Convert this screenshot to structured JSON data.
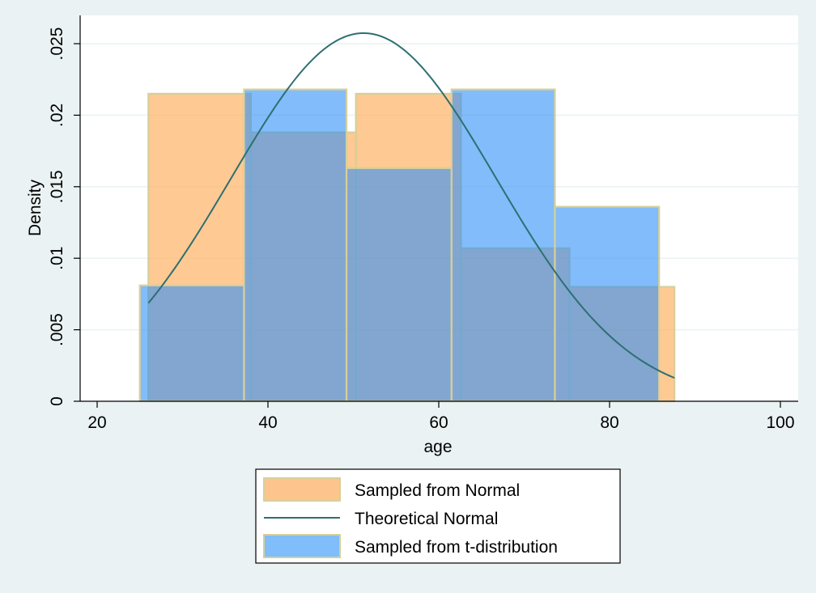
{
  "chart_data": {
    "type": "bar",
    "xlabel": "age",
    "ylabel": "Density",
    "xlim": [
      20,
      100
    ],
    "ylim": [
      0,
      0.026
    ],
    "x_ticks": [
      "20",
      "40",
      "60",
      "80",
      "100"
    ],
    "x_tick_values": [
      20,
      40,
      60,
      80,
      100
    ],
    "y_ticks": [
      "0",
      ".005",
      ".01",
      ".015",
      ".02",
      ".025"
    ],
    "y_tick_values": [
      0,
      0.005,
      0.01,
      0.015,
      0.02,
      0.025
    ],
    "grid": true,
    "legend_position": "bottom",
    "series": [
      {
        "name": "Sampled from Normal",
        "kind": "histogram",
        "color": "#fdb46a",
        "bins": [
          {
            "from": 26.0,
            "to": 38.0,
            "density": 0.0215
          },
          {
            "from": 38.0,
            "to": 50.3,
            "density": 0.0188
          },
          {
            "from": 50.3,
            "to": 62.6,
            "density": 0.0215
          },
          {
            "from": 62.6,
            "to": 75.3,
            "density": 0.0107
          },
          {
            "from": 75.3,
            "to": 87.6,
            "density": 0.008
          }
        ]
      },
      {
        "name": "Theoretical Normal",
        "kind": "line",
        "color": "#2e6f72",
        "mean": 51.2,
        "sd": 15.5,
        "x_range": [
          26.0,
          87.6
        ]
      },
      {
        "name": "Sampled from t-distribution",
        "kind": "histogram",
        "color": "#2f90f7",
        "bins": [
          {
            "from": 25.0,
            "to": 37.2,
            "density": 0.0081
          },
          {
            "from": 37.2,
            "to": 49.2,
            "density": 0.0218
          },
          {
            "from": 49.2,
            "to": 61.5,
            "density": 0.0163
          },
          {
            "from": 61.5,
            "to": 73.6,
            "density": 0.0218
          },
          {
            "from": 73.6,
            "to": 85.8,
            "density": 0.0136
          }
        ]
      }
    ]
  }
}
